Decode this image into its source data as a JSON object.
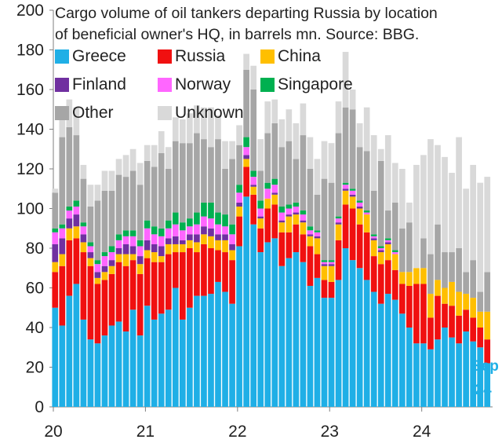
{
  "chart_data": {
    "type": "bar",
    "stacked": true,
    "title_lines": [
      "Cargo volume of oil tankers departing Russia by location",
      "of beneficial owner's HQ, in barrels mn. Source: BBG."
    ],
    "ylim": [
      0,
      200
    ],
    "yticks": [
      0,
      20,
      40,
      60,
      80,
      100,
      120,
      140,
      160,
      180,
      200
    ],
    "xlim": [
      0,
      248
    ],
    "xtick_labels": [
      "20",
      "21",
      "22",
      "23",
      "24"
    ],
    "xtick_positions": [
      0,
      52,
      104,
      156,
      208
    ],
    "bar_positions": [
      1,
      5,
      9,
      13,
      17,
      21,
      25,
      29,
      33,
      37,
      41,
      45,
      49,
      53,
      57,
      61,
      65,
      69,
      73,
      77,
      81,
      85,
      89,
      93,
      97,
      101,
      105,
      109,
      113,
      117,
      121,
      125,
      129,
      133,
      137,
      141,
      145,
      149,
      153,
      157,
      161,
      165,
      169,
      173,
      177,
      181,
      185,
      189,
      193,
      197,
      201,
      205,
      209,
      213,
      217,
      221,
      225,
      229,
      233,
      237,
      241,
      245
    ],
    "grid": false,
    "legend_position": "top-left",
    "series": [
      {
        "name": "Greece",
        "color": "#1FAFE6",
        "values": [
          50,
          41,
          56,
          62,
          44,
          34,
          32,
          36,
          41,
          43,
          38,
          49,
          36,
          51,
          44,
          47,
          49,
          60,
          44,
          50,
          56,
          56,
          57,
          63,
          58,
          52,
          81,
          106,
          92,
          78,
          83,
          85,
          71,
          75,
          78,
          73,
          61,
          65,
          55,
          55,
          64,
          80,
          74,
          70,
          64,
          58,
          52,
          57,
          54,
          47,
          40,
          32,
          32,
          29,
          34,
          40,
          35,
          32,
          38,
          33,
          30,
          22
        ]
      },
      {
        "name": "Russia",
        "color": "#F01010",
        "values": [
          18,
          30,
          28,
          23,
          34,
          37,
          30,
          28,
          26,
          30,
          33,
          25,
          31,
          24,
          29,
          26,
          28,
          18,
          34,
          30,
          22,
          26,
          23,
          16,
          20,
          22,
          15,
          15,
          15,
          12,
          17,
          17,
          17,
          13,
          14,
          14,
          20,
          12,
          9,
          8,
          20,
          22,
          26,
          22,
          24,
          18,
          20,
          17,
          15,
          15,
          21,
          30,
          30,
          16,
          22,
          12,
          16,
          14,
          11,
          12,
          10,
          12
        ]
      },
      {
        "name": "China",
        "color": "#FFBF00",
        "values": [
          5,
          6,
          6,
          6,
          5,
          4,
          3,
          4,
          4,
          4,
          6,
          3,
          5,
          4,
          5,
          3,
          5,
          4,
          4,
          4,
          5,
          5,
          6,
          5,
          6,
          5,
          5,
          4,
          4,
          5,
          5,
          5,
          5,
          8,
          5,
          6,
          5,
          8,
          7,
          8,
          8,
          7,
          6,
          8,
          9,
          8,
          6,
          8,
          8,
          6,
          7,
          8,
          8,
          12,
          8,
          8,
          12,
          12,
          8,
          10,
          8,
          14
        ]
      },
      {
        "name": "Finland",
        "color": "#7030A0",
        "values": [
          9,
          8,
          5,
          6,
          4,
          3,
          3,
          3,
          3,
          3,
          5,
          4,
          4,
          5,
          4,
          5,
          3,
          4,
          2,
          3,
          4,
          4,
          4,
          3,
          3,
          3,
          2,
          2,
          1,
          1,
          0,
          1,
          1,
          1,
          1,
          1,
          1,
          1,
          1,
          1,
          1,
          1,
          1,
          1,
          0,
          1,
          1,
          1,
          0,
          0,
          0,
          0,
          0,
          0,
          0,
          0,
          0,
          0,
          0,
          0,
          0,
          0
        ]
      },
      {
        "name": "Norway",
        "color": "#FF66FF",
        "values": [
          6,
          5,
          4,
          4,
          4,
          3,
          4,
          5,
          4,
          4,
          4,
          5,
          5,
          6,
          5,
          5,
          5,
          6,
          5,
          4,
          5,
          5,
          5,
          5,
          4,
          5,
          5,
          4,
          4,
          4,
          5,
          4,
          4,
          3,
          3,
          3,
          2,
          2,
          1,
          1,
          2,
          2,
          2,
          2,
          1,
          1,
          1,
          1,
          1,
          0,
          0,
          0,
          0,
          0,
          0,
          0,
          0,
          0,
          0,
          0,
          0,
          0
        ]
      },
      {
        "name": "Singapore",
        "color": "#00B050",
        "values": [
          2,
          2,
          2,
          3,
          2,
          2,
          2,
          2,
          3,
          3,
          3,
          3,
          3,
          4,
          4,
          4,
          4,
          6,
          4,
          4,
          6,
          7,
          8,
          6,
          6,
          5,
          4,
          5,
          3,
          4,
          3,
          3,
          3,
          2,
          2,
          2,
          2,
          1,
          1,
          1,
          1,
          1,
          1,
          1,
          1,
          1,
          1,
          1,
          1,
          0,
          0,
          0,
          0,
          0,
          0,
          0,
          0,
          0,
          0,
          0,
          0,
          0
        ]
      },
      {
        "name": "Other",
        "color": "#A6A6A6",
        "values": [
          18,
          44,
          40,
          33,
          22,
          18,
          30,
          31,
          28,
          30,
          27,
          30,
          28,
          30,
          30,
          38,
          26,
          36,
          40,
          38,
          40,
          32,
          28,
          37,
          23,
          33,
          20,
          34,
          41,
          15,
          25,
          28,
          30,
          32,
          22,
          38,
          29,
          18,
          41,
          39,
          42,
          38,
          40,
          27,
          30,
          22,
          43,
          14,
          24,
          22,
          25,
          0,
          15,
          20,
          28,
          18,
          15,
          22,
          11,
          19,
          10,
          20
        ]
      },
      {
        "name": "Unknown",
        "color": "#D9D9D9",
        "values": [
          2,
          12,
          14,
          14,
          7,
          11,
          8,
          10,
          10,
          8,
          11,
          11,
          11,
          8,
          11,
          11,
          11,
          12,
          12,
          15,
          14,
          16,
          20,
          12,
          14,
          9,
          10,
          8,
          12,
          16,
          16,
          12,
          14,
          16,
          18,
          16,
          16,
          18,
          19,
          20,
          16,
          28,
          10,
          12,
          22,
          28,
          6,
          38,
          20,
          30,
          10,
          52,
          42,
          58,
          40,
          48,
          40,
          56,
          42,
          48,
          55,
          48
        ]
      }
    ],
    "end_label_lines": [
      "Sep",
      "'24"
    ],
    "end_label_color": "#1FAFE6"
  }
}
